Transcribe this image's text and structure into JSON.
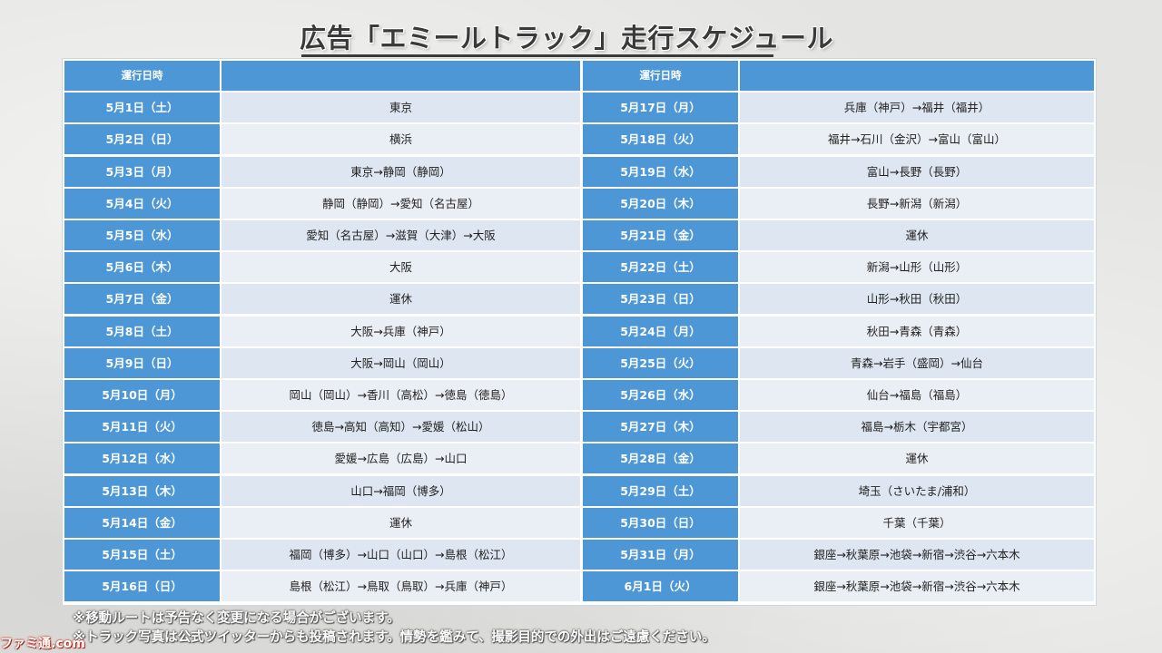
{
  "page": {
    "title": "広告「エミールトラック」走行スケジュール"
  },
  "table": {
    "header": {
      "date_label": "運行日時",
      "route_label": ""
    },
    "left_rows": [
      {
        "date": "5月1日（土）",
        "route": "東京"
      },
      {
        "date": "5月2日（日）",
        "route": "横浜"
      },
      {
        "date": "5月3日（月）",
        "route": "東京→静岡（静岡）"
      },
      {
        "date": "5月4日（火）",
        "route": "静岡（静岡）→愛知（名古屋）"
      },
      {
        "date": "5月5日（水）",
        "route": "愛知（名古屋）→滋賀（大津）→大阪"
      },
      {
        "date": "5月6日（木）",
        "route": "大阪"
      },
      {
        "date": "5月7日（金）",
        "route": "運休"
      },
      {
        "date": "5月8日（土）",
        "route": "大阪→兵庫（神戸）"
      },
      {
        "date": "5月9日（日）",
        "route": "大阪→岡山（岡山）"
      },
      {
        "date": "5月10日（月）",
        "route": "岡山（岡山）→香川（高松）→徳島（徳島）"
      },
      {
        "date": "5月11日（火）",
        "route": "徳島→高知（高知）→愛媛（松山）"
      },
      {
        "date": "5月12日（水）",
        "route": "愛媛→広島（広島）→山口"
      },
      {
        "date": "5月13日（木）",
        "route": "山口→福岡（博多）"
      },
      {
        "date": "5月14日（金）",
        "route": "運休"
      },
      {
        "date": "5月15日（土）",
        "route": "福岡（博多）→山口（山口）→島根（松江）"
      },
      {
        "date": "5月16日（日）",
        "route": "島根（松江）→鳥取（鳥取）→兵庫（神戸）"
      }
    ],
    "right_rows": [
      {
        "date": "5月17日（月）",
        "route": "兵庫（神戸）→福井（福井）"
      },
      {
        "date": "5月18日（火）",
        "route": "福井→石川（金沢）→富山（富山）"
      },
      {
        "date": "5月19日（水）",
        "route": "富山→長野（長野）"
      },
      {
        "date": "5月20日（木）",
        "route": "長野→新潟（新潟）"
      },
      {
        "date": "5月21日（金）",
        "route": "運休"
      },
      {
        "date": "5月22日（土）",
        "route": "新潟→山形（山形）"
      },
      {
        "date": "5月23日（日）",
        "route": "山形→秋田（秋田）"
      },
      {
        "date": "5月24日（月）",
        "route": "秋田→青森（青森）"
      },
      {
        "date": "5月25日（火）",
        "route": "青森→岩手（盛岡）→仙台"
      },
      {
        "date": "5月26日（水）",
        "route": "仙台→福島（福島）"
      },
      {
        "date": "5月27日（木）",
        "route": "福島→栃木（宇都宮）"
      },
      {
        "date": "5月28日（金）",
        "route": "運休"
      },
      {
        "date": "5月29日（土）",
        "route": "埼玉（さいたま/浦和）"
      },
      {
        "date": "5月30日（日）",
        "route": "千葉（千葉）"
      },
      {
        "date": "5月31日（月）",
        "route": "銀座→秋葉原→池袋→新宿→渋谷→六本木"
      },
      {
        "date": "6月1日（火）",
        "route": "銀座→秋葉原→池袋→新宿→渋谷→六本木"
      }
    ]
  },
  "notes": [
    "※移動ルートは予告なく変更になる場合がございます。",
    "※トラック写真は公式ツイッターからも投稿されます。情勢を鑑みて、撮影目的での外出はご遠慮ください。"
  ],
  "watermark": {
    "text": "ファミ通.com"
  },
  "colors": {
    "header_blue": "#4d97d6",
    "row_light": "#dde6f1",
    "row_lighter": "#eaeff6",
    "title_text": "#3a3a3a"
  }
}
